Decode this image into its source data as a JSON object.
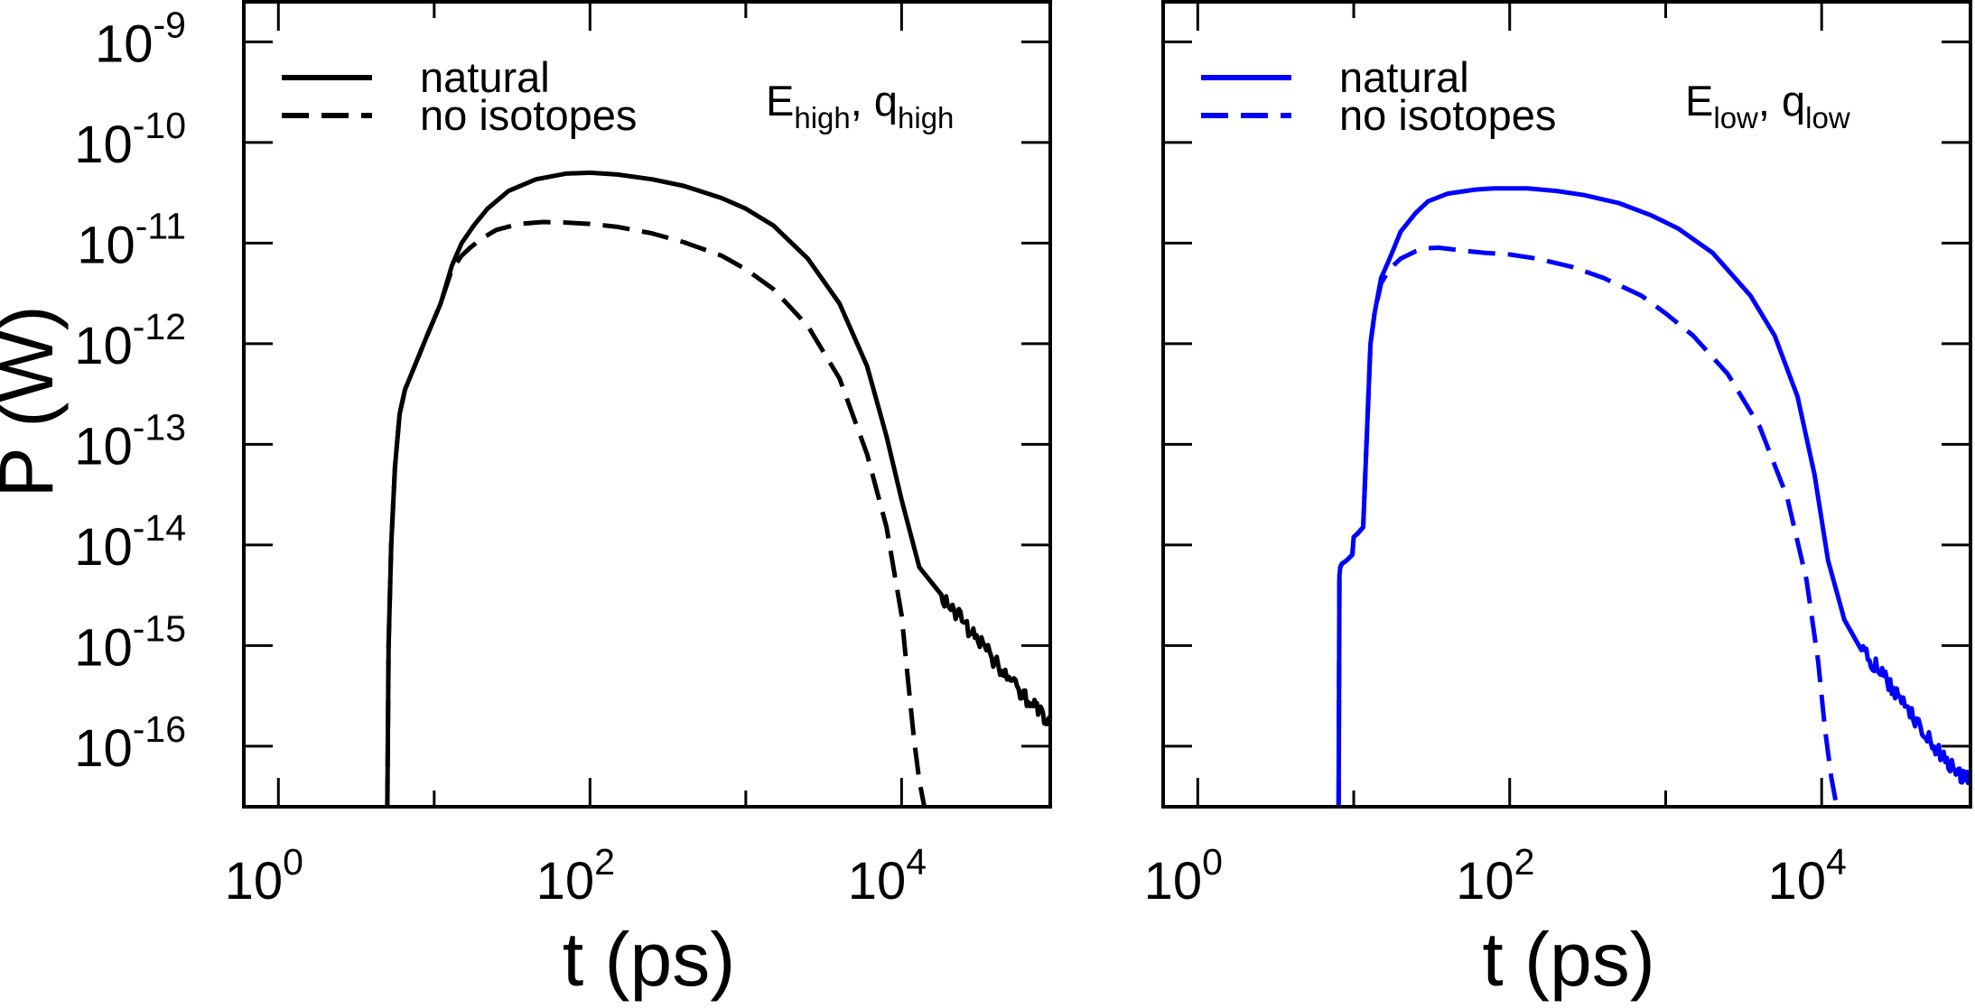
{
  "figure": {
    "ylabel": "P (W)",
    "xlabel": "t (ps)"
  },
  "chart_data": [
    {
      "type": "line",
      "panel": "left",
      "annotation_main": "E",
      "annotation_sub1": "high",
      "annotation_sep": ", q",
      "annotation_sub2": "high",
      "xlabel": "t (ps)",
      "ylabel": "P (W)",
      "xscale": "log",
      "yscale": "log",
      "xlim": [
        0.6,
        90000
      ],
      "ylim": [
        2.5e-17,
        2.5e-09
      ],
      "xticks": [
        {
          "base": "10",
          "exp": "0",
          "value": 1
        },
        {
          "base": "10",
          "exp": "2",
          "value": 100
        },
        {
          "base": "10",
          "exp": "4",
          "value": 10000
        }
      ],
      "yticks": [
        {
          "base": "10",
          "exp": "-9",
          "value": 1e-09
        },
        {
          "base": "10",
          "exp": "-10",
          "value": 1e-10
        },
        {
          "base": "10",
          "exp": "-11",
          "value": 1e-11
        },
        {
          "base": "10",
          "exp": "-12",
          "value": 1e-12
        },
        {
          "base": "10",
          "exp": "-13",
          "value": 1e-13
        },
        {
          "base": "10",
          "exp": "-14",
          "value": 1e-14
        },
        {
          "base": "10",
          "exp": "-15",
          "value": 1e-15
        },
        {
          "base": "10",
          "exp": "-16",
          "value": 1e-16
        }
      ],
      "legend_position": "top-left",
      "grid": false,
      "color": "#000000",
      "series": [
        {
          "name": "natural",
          "style": "solid",
          "noisy_from": 15000,
          "x": [
            5.0,
            5.1,
            5.3,
            5.6,
            6.0,
            6.5,
            7.5,
            9.0,
            11,
            13,
            15,
            18,
            22,
            30,
            45,
            70,
            100,
            150,
            250,
            400,
            700,
            1000,
            1500,
            2500,
            4000,
            6000,
            8000,
            10000,
            13000,
            18000,
            25000,
            35000,
            50000,
            70000,
            90000
          ],
          "y": [
            2.5e-17,
            1e-15,
            1e-14,
            6e-14,
            2e-13,
            3.5e-13,
            6e-13,
            1.2e-12,
            2.5e-12,
            6e-12,
            1e-11,
            1.5e-11,
            2.2e-11,
            3.3e-11,
            4.3e-11,
            4.9e-11,
            5e-11,
            4.8e-11,
            4.3e-11,
            3.7e-11,
            2.8e-11,
            2.2e-11,
            1.5e-11,
            7e-12,
            2.5e-12,
            6e-13,
            1.2e-13,
            2.8e-14,
            6e-15,
            3.2e-15,
            1.7e-15,
            9e-16,
            4.5e-16,
            2.5e-16,
            1.6e-16
          ]
        },
        {
          "name": "no isotopes",
          "style": "dashed",
          "x": [
            5.0,
            5.1,
            5.3,
            5.6,
            6.0,
            6.5,
            7.5,
            9.0,
            11,
            13,
            15,
            17,
            20,
            25,
            35,
            50,
            70,
            100,
            150,
            250,
            400,
            700,
            1000,
            1500,
            2500,
            4000,
            6000,
            8000,
            10000,
            11000,
            12000,
            13000,
            14000
          ],
          "y": [
            2.5e-17,
            1e-15,
            1e-14,
            6e-14,
            2e-13,
            3.5e-13,
            6e-13,
            1.2e-12,
            2.5e-12,
            5.5e-12,
            7.5e-12,
            9e-12,
            1.1e-11,
            1.35e-11,
            1.55e-11,
            1.62e-11,
            1.6e-11,
            1.55e-11,
            1.45e-11,
            1.25e-11,
            1.02e-11,
            7.5e-12,
            5.5e-12,
            3.5e-12,
            1.5e-12,
            4.5e-13,
            8e-14,
            1.5e-14,
            2e-15,
            4.5e-16,
            1.2e-16,
            4.5e-17,
            2.5e-17
          ]
        }
      ]
    },
    {
      "type": "line",
      "panel": "right",
      "annotation_main": "E",
      "annotation_sub1": "low",
      "annotation_sep": ", q",
      "annotation_sub2": "low",
      "xlabel": "t (ps)",
      "ylabel": "P (W)",
      "xscale": "log",
      "yscale": "log",
      "xlim": [
        0.6,
        90000
      ],
      "ylim": [
        2.5e-17,
        2.5e-09
      ],
      "xticks": [
        {
          "base": "10",
          "exp": "0",
          "value": 1
        },
        {
          "base": "10",
          "exp": "2",
          "value": 100
        },
        {
          "base": "10",
          "exp": "4",
          "value": 10000
        }
      ],
      "legend_position": "top-left",
      "grid": false,
      "color": "#0000ff",
      "series": [
        {
          "name": "natural",
          "style": "solid",
          "noisy_from": 15000,
          "x": [
            8.0,
            8.1,
            8.2,
            8.4,
            9.0,
            9.8,
            10.0,
            10.6,
            11.5,
            12.8,
            13.6,
            15,
            17,
            20,
            25,
            30,
            40,
            60,
            80,
            100,
            130,
            200,
            300,
            500,
            800,
            1200,
            2000,
            3500,
            5000,
            7000,
            9000,
            11000,
            14000,
            18000,
            25000,
            35000,
            50000,
            70000,
            90000
          ],
          "y": [
            2.5e-17,
            5e-15,
            6e-15,
            6.5e-15,
            7e-15,
            8e-15,
            1.2e-14,
            1.3e-14,
            1.5e-14,
            1e-12,
            2e-12,
            4.5e-12,
            7e-12,
            1.3e-11,
            2e-11,
            2.6e-11,
            3.1e-11,
            3.4e-11,
            3.5e-11,
            3.5e-11,
            3.5e-11,
            3.3e-11,
            3e-11,
            2.5e-11,
            1.9e-11,
            1.4e-11,
            8e-12,
            3e-12,
            1.2e-12,
            3e-13,
            5e-14,
            7e-15,
            1.8e-15,
            9e-16,
            5e-16,
            2.5e-16,
            1.1e-16,
            6e-17,
            4.5e-17
          ]
        },
        {
          "name": "no isotopes",
          "style": "dashed",
          "x": [
            8.0,
            8.1,
            8.2,
            8.4,
            9.0,
            9.8,
            10.0,
            10.6,
            11.5,
            12.8,
            13.6,
            15,
            17,
            20,
            25,
            30,
            35,
            40,
            50,
            70,
            100,
            150,
            250,
            400,
            700,
            1000,
            1500,
            2500,
            4000,
            6000,
            8000,
            9500,
            10500,
            11500,
            12500
          ],
          "y": [
            2.5e-17,
            5e-15,
            6e-15,
            6.5e-15,
            7e-15,
            8e-15,
            1.2e-14,
            1.3e-14,
            1.5e-14,
            1e-12,
            2e-12,
            4e-12,
            5.5e-12,
            7e-12,
            8.3e-12,
            8.9e-12,
            9e-12,
            8.8e-12,
            8.4e-12,
            8e-12,
            7.7e-12,
            7e-12,
            5.8e-12,
            4.5e-12,
            3e-12,
            2e-12,
            1.2e-12,
            5e-13,
            1.5e-13,
            3e-14,
            4.5e-15,
            7e-16,
            1.5e-16,
            5e-17,
            2.5e-17
          ]
        }
      ]
    }
  ]
}
